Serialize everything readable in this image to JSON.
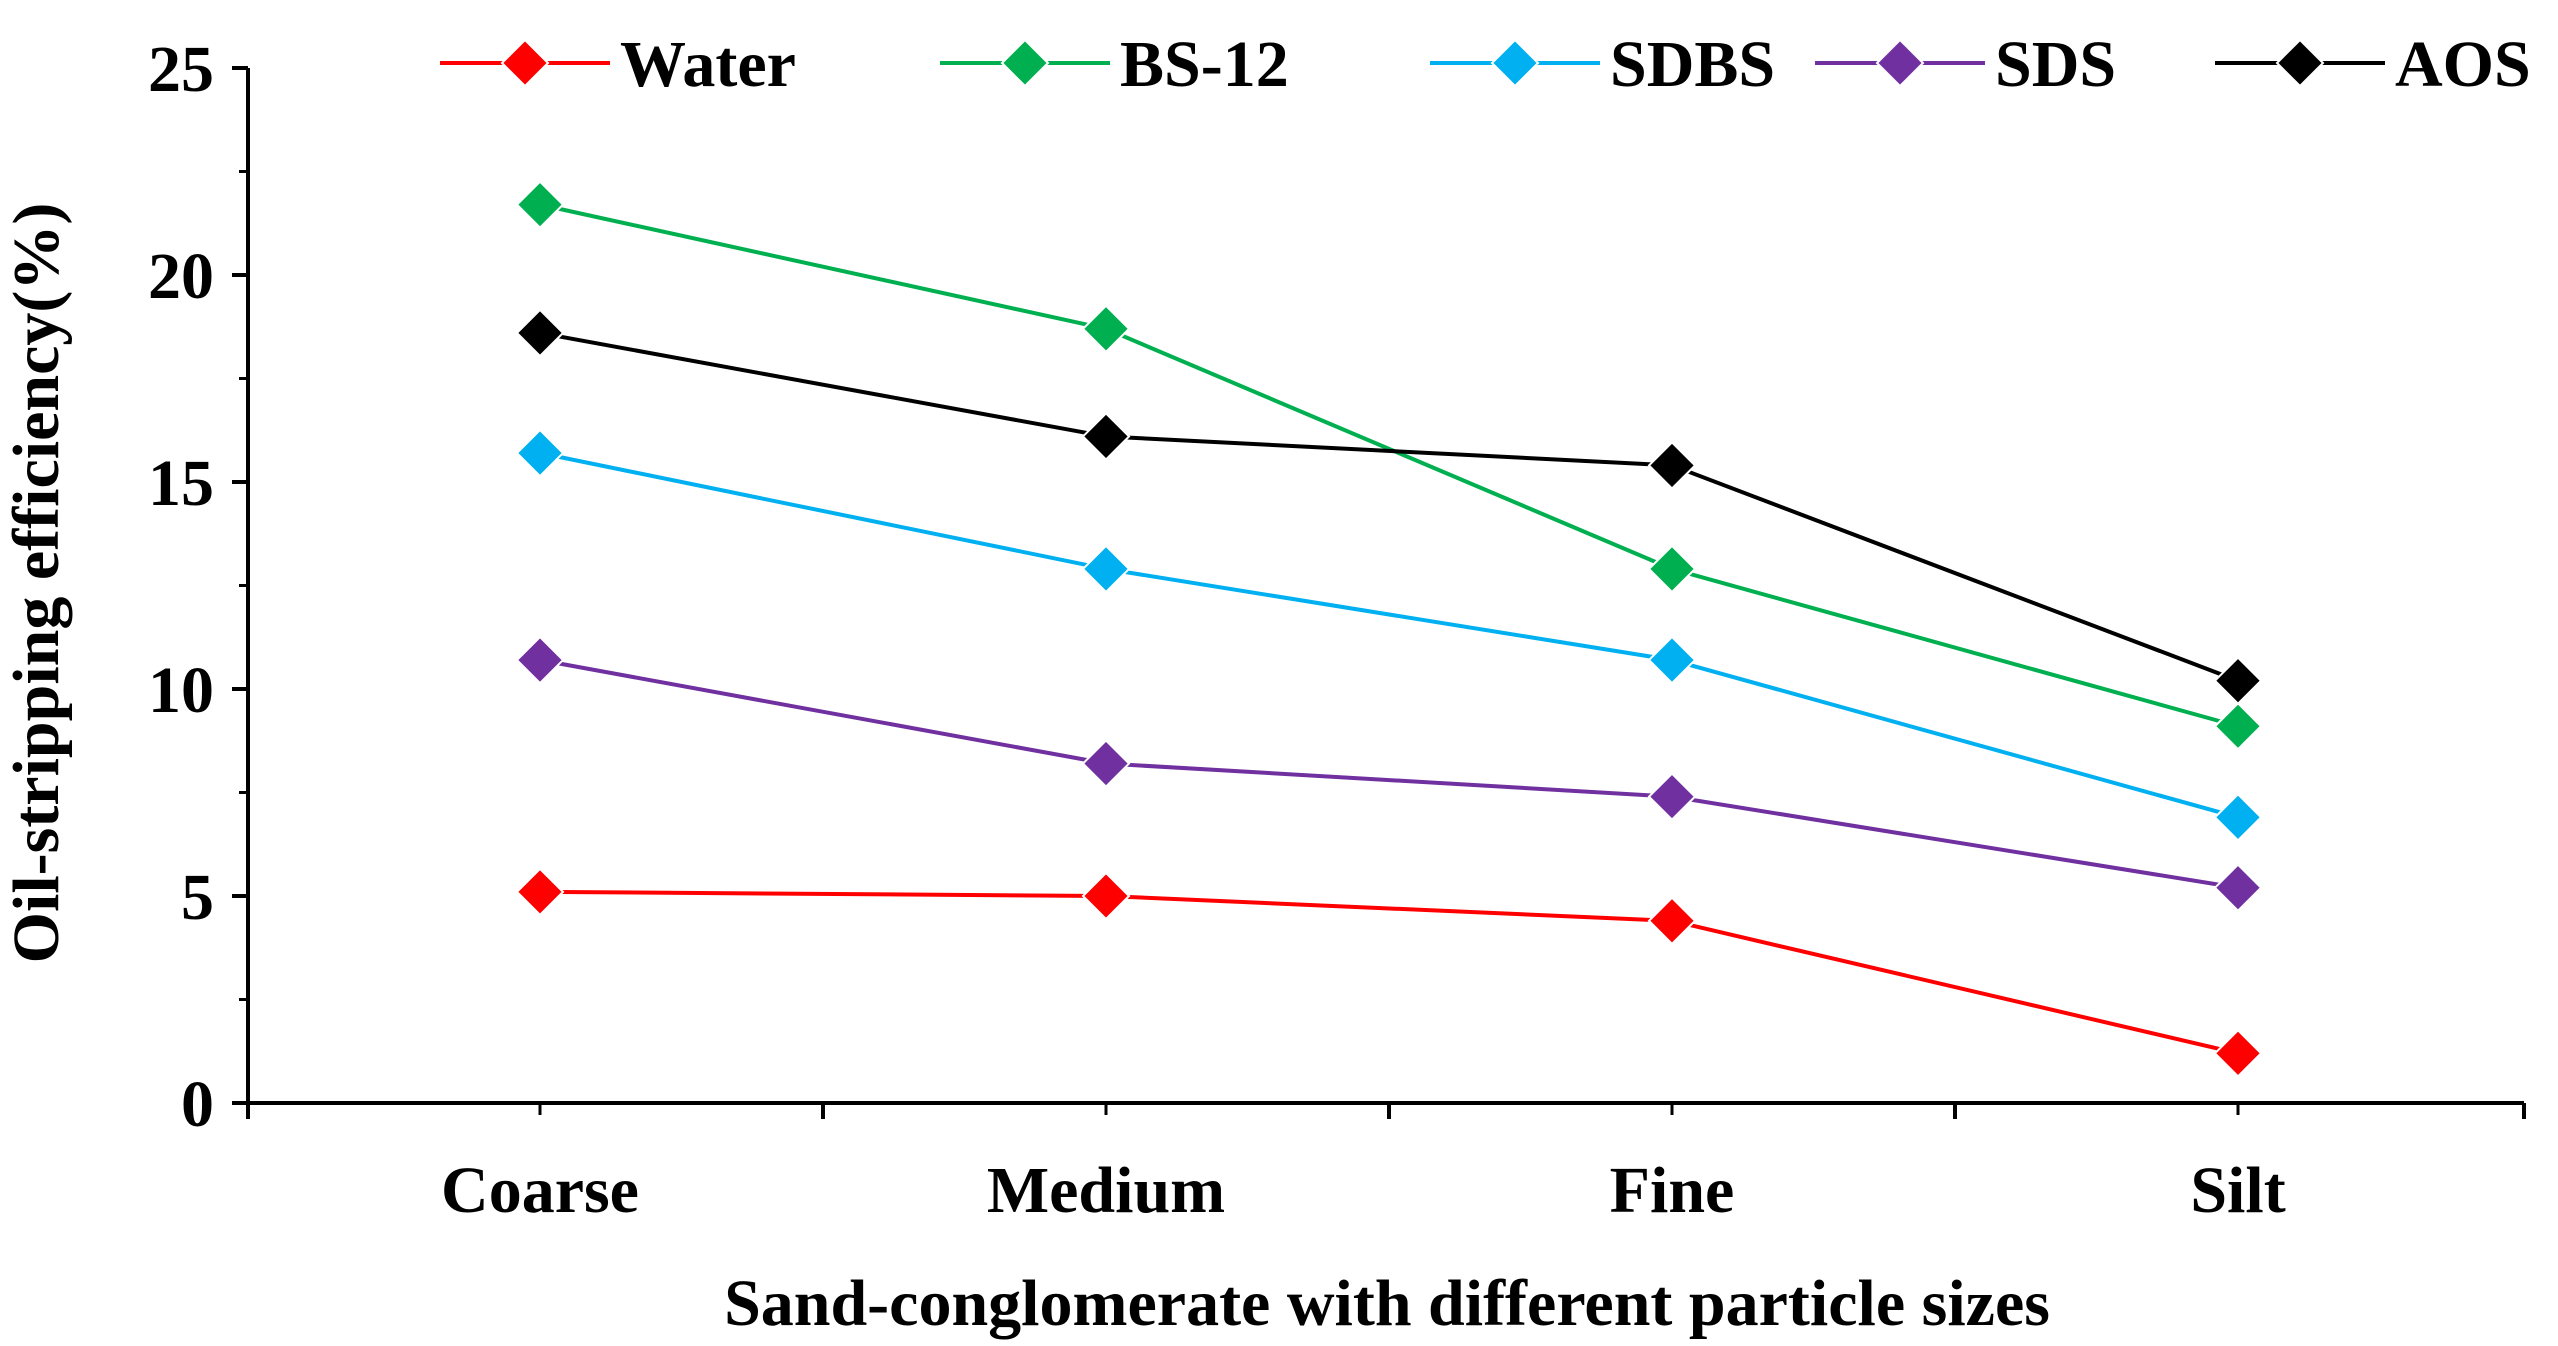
{
  "chart_data": {
    "type": "line",
    "title": "",
    "xlabel": "Sand-conglomerate with different particle sizes",
    "ylabel": "Oil-stripping efficiency(%)",
    "categories": [
      "Coarse",
      "Medium",
      "Fine",
      "Silt"
    ],
    "ylim": [
      0,
      25
    ],
    "yticks": [
      0,
      5,
      10,
      15,
      20,
      25
    ],
    "ytick_labels": [
      "0",
      "5",
      "10",
      "15",
      "20",
      "25"
    ],
    "grid": false,
    "legend_position": "top",
    "marker": "diamond",
    "series": [
      {
        "name": "Water",
        "color": "#ff0000",
        "values": [
          5.1,
          5.0,
          4.4,
          1.2
        ]
      },
      {
        "name": "BS-12",
        "color": "#00b050",
        "values": [
          21.7,
          18.7,
          12.9,
          9.1
        ]
      },
      {
        "name": "SDBS",
        "color": "#00b0f0",
        "values": [
          15.7,
          12.9,
          10.7,
          6.9
        ]
      },
      {
        "name": "SDS",
        "color": "#7030a0",
        "values": [
          10.7,
          8.2,
          7.4,
          5.2
        ]
      },
      {
        "name": "AOS",
        "color": "#000000",
        "values": [
          18.6,
          16.1,
          15.4,
          10.2
        ]
      }
    ]
  }
}
